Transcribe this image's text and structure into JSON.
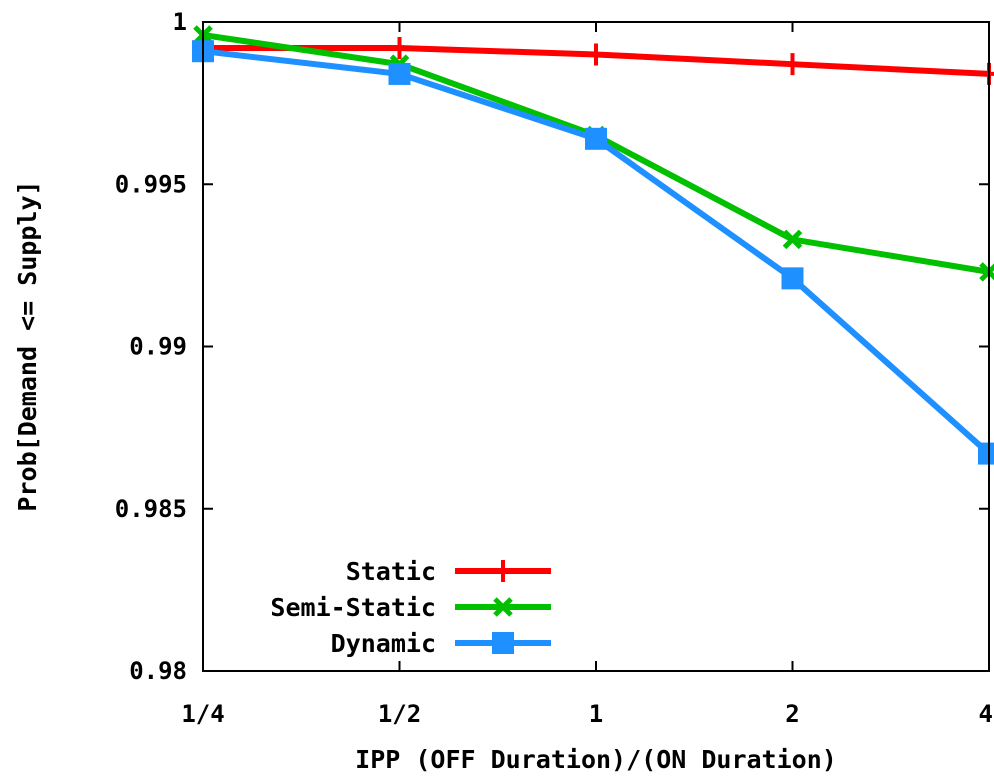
{
  "chart_data": {
    "type": "line",
    "title": "",
    "xlabel": "IPP (OFF Duration)/(ON Duration)",
    "ylabel": "Prob[Demand <= Supply]",
    "categories": [
      "1/4",
      "1/2",
      "1",
      "2",
      "4"
    ],
    "x_scale": "log2",
    "ylim": [
      0.98,
      1.0
    ],
    "yticks": [
      0.98,
      0.985,
      0.99,
      0.995,
      1.0
    ],
    "ytick_labels": [
      "0.98",
      "0.985",
      "0.99",
      "0.995",
      "1"
    ],
    "grid": false,
    "legend_position": "bottom-left",
    "series": [
      {
        "name": "Static",
        "color": "#ff0000",
        "marker": "plus",
        "values": [
          0.9992,
          0.9992,
          0.999,
          0.9987,
          0.9984
        ]
      },
      {
        "name": "Semi-Static",
        "color": "#00c000",
        "marker": "cross",
        "values": [
          0.9996,
          0.9987,
          0.9965,
          0.9933,
          0.9923
        ]
      },
      {
        "name": "Dynamic",
        "color": "#1e90ff",
        "marker": "square",
        "values": [
          0.9991,
          0.9984,
          0.9964,
          0.9921,
          0.9867
        ]
      }
    ]
  }
}
